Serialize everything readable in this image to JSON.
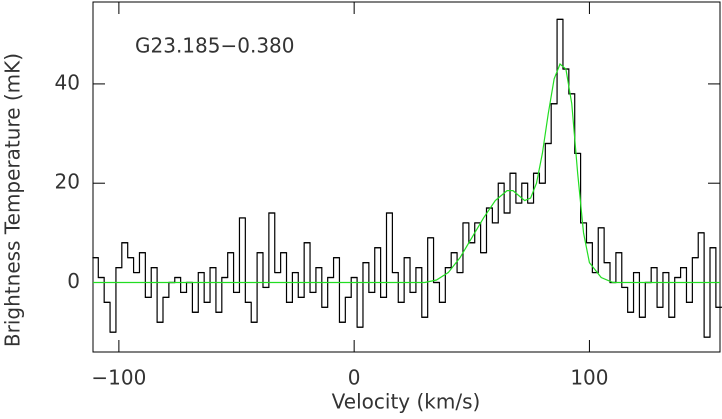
{
  "chart_data": {
    "type": "step",
    "annotation": "G23.185−0.380",
    "xlabel": "Velocity (km/s)",
    "ylabel": "Brightness Temperature (mK)",
    "xlim": [
      -111,
      155.5
    ],
    "ylim": [
      -14,
      56.5
    ],
    "xticks": [
      {
        "value": -100,
        "label": "−100"
      },
      0,
      100
    ],
    "yticks": [
      0,
      20,
      40
    ],
    "series": [
      {
        "color": "#000000",
        "x": [
          -110,
          -107.5,
          -105,
          -102.5,
          -100,
          -97.5,
          -95,
          -92.5,
          -90,
          -87.5,
          -85,
          -82.5,
          -80,
          -77.5,
          -75,
          -72.5,
          -70,
          -67.5,
          -65,
          -62.5,
          -60,
          -57.5,
          -55,
          -52.5,
          -50,
          -47.5,
          -45,
          -42.5,
          -40,
          -37.5,
          -35,
          -32.5,
          -30,
          -27.5,
          -25,
          -22.5,
          -20,
          -17.5,
          -15,
          -12.5,
          -10,
          -7.5,
          -5,
          -2.5,
          0,
          2.5,
          5,
          7.5,
          10,
          12.5,
          15,
          17.5,
          20,
          22.5,
          25,
          27.5,
          30,
          32.5,
          35,
          37.5,
          40,
          42.5,
          45,
          47.5,
          50,
          52.5,
          55,
          57.5,
          60,
          62.5,
          65,
          67.5,
          70,
          72.5,
          75,
          77.5,
          80,
          82.5,
          85,
          87.5,
          90,
          92.5,
          95,
          97.5,
          100,
          102.5,
          105,
          107.5,
          110,
          112.5,
          115,
          117.5,
          120,
          122.5,
          125,
          127.5,
          130,
          132.5,
          135,
          137.5,
          140,
          142.5,
          145,
          147.5,
          150,
          152.5,
          155
        ],
        "values": [
          5,
          1,
          -4,
          -10,
          3,
          8,
          5,
          2,
          6,
          -3,
          3,
          -8,
          -3,
          0,
          1,
          -2,
          0,
          -6,
          2,
          -4,
          3,
          -6,
          1,
          6,
          -2,
          13,
          -4,
          -8,
          6,
          -1,
          14,
          2,
          6,
          -4,
          2,
          -3,
          8,
          -2,
          3,
          -5,
          1,
          5,
          -8,
          -3,
          1,
          -9,
          4,
          -2,
          7,
          -3,
          14,
          2,
          -4,
          5,
          -2,
          3,
          -7,
          9,
          0,
          -4,
          3,
          6,
          2,
          12,
          8,
          12,
          6,
          15,
          12,
          20,
          14,
          22,
          16,
          20,
          16,
          22,
          20,
          28,
          36,
          53,
          43,
          38,
          26,
          12,
          8,
          2,
          11,
          4,
          0,
          6,
          -1,
          -6,
          2,
          -7,
          0,
          3,
          -5,
          2,
          -7,
          1,
          3,
          -4,
          5,
          10,
          -11,
          7,
          -5
        ]
      },
      {
        "color": "#22dd22",
        "x": [
          -111,
          30,
          35,
          40,
          45,
          50,
          55,
          60,
          65,
          67.5,
          70,
          72.5,
          75,
          77.5,
          80,
          82.5,
          85,
          87.5,
          90,
          92.5,
          95,
          97.5,
          100,
          105,
          110,
          155.5
        ],
        "values": [
          0,
          0,
          0.5,
          2,
          5,
          9,
          13,
          16.5,
          18.5,
          18.5,
          17.5,
          16.5,
          17,
          20,
          26,
          34,
          41,
          44,
          43,
          36,
          22,
          10,
          4,
          1,
          0,
          0
        ]
      }
    ]
  }
}
